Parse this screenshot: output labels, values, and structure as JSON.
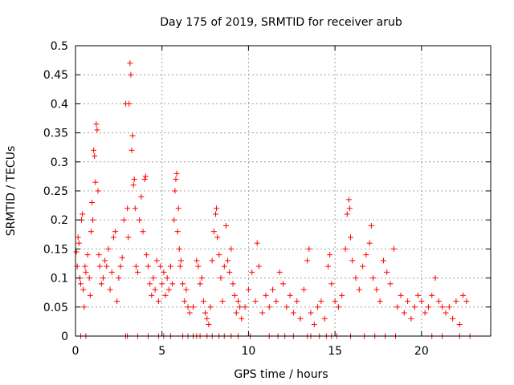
{
  "chart_data": {
    "type": "scatter",
    "title": "Day 175 of 2019, SRMTID for receiver arub",
    "xlabel": "GPS time / hours",
    "ylabel": "SRMTID / TECUs",
    "xlim": [
      0,
      24
    ],
    "ylim": [
      0,
      0.5
    ],
    "x_ticks": [
      0,
      5,
      10,
      15,
      20
    ],
    "y_ticks": [
      0,
      0.05,
      0.1,
      0.15,
      0.2,
      0.25,
      0.3,
      0.35,
      0.4,
      0.45,
      0.5
    ],
    "x_tick_labels": [
      "0",
      "5",
      "10",
      "15",
      "20"
    ],
    "y_tick_labels": [
      "0",
      "0.05",
      "0.1",
      "0.15",
      "0.2",
      "0.25",
      "0.3",
      "0.35",
      "0.4",
      "0.45",
      "0.5"
    ],
    "grid": true,
    "marker": "+",
    "series": [
      {
        "name": "SRMTID",
        "color": "#ff0000",
        "points": [
          [
            0.05,
            0.145
          ],
          [
            0.1,
            0.12
          ],
          [
            0.15,
            0.17
          ],
          [
            0.2,
            0.16
          ],
          [
            0.25,
            0.1
          ],
          [
            0.3,
            0.09
          ],
          [
            0.35,
            0.2
          ],
          [
            0.4,
            0.21
          ],
          [
            0.45,
            0.08
          ],
          [
            0.5,
            0.05
          ],
          [
            0.55,
            0.12
          ],
          [
            0.6,
            0.11
          ],
          [
            0.7,
            0.14
          ],
          [
            0.8,
            0.1
          ],
          [
            0.85,
            0.07
          ],
          [
            0.9,
            0.18
          ],
          [
            0.95,
            0.23
          ],
          [
            1.0,
            0.2
          ],
          [
            1.05,
            0.32
          ],
          [
            1.1,
            0.31
          ],
          [
            1.15,
            0.265
          ],
          [
            1.2,
            0.365
          ],
          [
            1.25,
            0.355
          ],
          [
            1.3,
            0.25
          ],
          [
            1.35,
            0.14
          ],
          [
            1.4,
            0.12
          ],
          [
            1.5,
            0.09
          ],
          [
            1.6,
            0.1
          ],
          [
            1.7,
            0.13
          ],
          [
            1.8,
            0.12
          ],
          [
            1.9,
            0.15
          ],
          [
            2.0,
            0.08
          ],
          [
            2.1,
            0.11
          ],
          [
            2.2,
            0.17
          ],
          [
            2.3,
            0.18
          ],
          [
            2.4,
            0.06
          ],
          [
            2.5,
            0.1
          ],
          [
            2.6,
            0.12
          ],
          [
            2.7,
            0.135
          ],
          [
            2.8,
            0.2
          ],
          [
            2.9,
            0.4
          ],
          [
            3.0,
            0.22
          ],
          [
            3.05,
            0.17
          ],
          [
            3.1,
            0.4
          ],
          [
            3.15,
            0.47
          ],
          [
            3.2,
            0.45
          ],
          [
            3.25,
            0.32
          ],
          [
            3.3,
            0.345
          ],
          [
            3.35,
            0.26
          ],
          [
            3.4,
            0.27
          ],
          [
            3.45,
            0.22
          ],
          [
            3.5,
            0.12
          ],
          [
            3.6,
            0.11
          ],
          [
            3.7,
            0.2
          ],
          [
            3.8,
            0.24
          ],
          [
            3.9,
            0.18
          ],
          [
            4.0,
            0.27
          ],
          [
            4.05,
            0.275
          ],
          [
            4.1,
            0.14
          ],
          [
            4.2,
            0.12
          ],
          [
            4.3,
            0.09
          ],
          [
            4.4,
            0.07
          ],
          [
            4.5,
            0.1
          ],
          [
            4.6,
            0.08
          ],
          [
            4.7,
            0.13
          ],
          [
            4.8,
            0.06
          ],
          [
            4.9,
            0.12
          ],
          [
            5.0,
            0.09
          ],
          [
            5.1,
            0.11
          ],
          [
            5.2,
            0.07
          ],
          [
            5.3,
            0.1
          ],
          [
            5.4,
            0.08
          ],
          [
            5.5,
            0.12
          ],
          [
            5.6,
            0.09
          ],
          [
            5.7,
            0.2
          ],
          [
            5.75,
            0.25
          ],
          [
            5.8,
            0.27
          ],
          [
            5.85,
            0.28
          ],
          [
            5.9,
            0.18
          ],
          [
            5.95,
            0.22
          ],
          [
            6.0,
            0.15
          ],
          [
            6.05,
            0.12
          ],
          [
            6.1,
            0.13
          ],
          [
            6.2,
            0.09
          ],
          [
            6.3,
            0.06
          ],
          [
            6.4,
            0.08
          ],
          [
            6.5,
            0.05
          ],
          [
            6.6,
            0.04
          ],
          [
            6.8,
            0.05
          ],
          [
            7.0,
            0.13
          ],
          [
            7.1,
            0.12
          ],
          [
            7.2,
            0.09
          ],
          [
            7.3,
            0.1
          ],
          [
            7.4,
            0.06
          ],
          [
            7.5,
            0.04
          ],
          [
            7.6,
            0.03
          ],
          [
            7.7,
            0.02
          ],
          [
            7.8,
            0.05
          ],
          [
            7.9,
            0.13
          ],
          [
            8.0,
            0.18
          ],
          [
            8.1,
            0.21
          ],
          [
            8.15,
            0.22
          ],
          [
            8.2,
            0.17
          ],
          [
            8.3,
            0.14
          ],
          [
            8.4,
            0.1
          ],
          [
            8.5,
            0.06
          ],
          [
            8.6,
            0.12
          ],
          [
            8.7,
            0.19
          ],
          [
            8.8,
            0.13
          ],
          [
            8.9,
            0.11
          ],
          [
            9.0,
            0.15
          ],
          [
            9.1,
            0.09
          ],
          [
            9.2,
            0.07
          ],
          [
            9.3,
            0.04
          ],
          [
            9.4,
            0.06
          ],
          [
            9.5,
            0.05
          ],
          [
            9.6,
            0.03
          ],
          [
            9.8,
            0.05
          ],
          [
            10.0,
            0.08
          ],
          [
            10.2,
            0.11
          ],
          [
            10.4,
            0.06
          ],
          [
            10.5,
            0.16
          ],
          [
            10.6,
            0.12
          ],
          [
            10.8,
            0.04
          ],
          [
            11.0,
            0.07
          ],
          [
            11.2,
            0.05
          ],
          [
            11.4,
            0.08
          ],
          [
            11.6,
            0.06
          ],
          [
            11.8,
            0.11
          ],
          [
            12.0,
            0.09
          ],
          [
            12.2,
            0.05
          ],
          [
            12.4,
            0.07
          ],
          [
            12.6,
            0.04
          ],
          [
            12.8,
            0.06
          ],
          [
            13.0,
            0.03
          ],
          [
            13.2,
            0.08
          ],
          [
            13.4,
            0.13
          ],
          [
            13.5,
            0.15
          ],
          [
            13.6,
            0.04
          ],
          [
            13.8,
            0.02
          ],
          [
            14.0,
            0.05
          ],
          [
            14.2,
            0.06
          ],
          [
            14.4,
            0.03
          ],
          [
            14.6,
            0.12
          ],
          [
            14.7,
            0.14
          ],
          [
            14.8,
            0.09
          ],
          [
            15.0,
            0.06
          ],
          [
            15.2,
            0.05
          ],
          [
            15.4,
            0.07
          ],
          [
            15.6,
            0.15
          ],
          [
            15.7,
            0.21
          ],
          [
            15.8,
            0.235
          ],
          [
            15.85,
            0.22
          ],
          [
            15.9,
            0.17
          ],
          [
            16.0,
            0.13
          ],
          [
            16.2,
            0.1
          ],
          [
            16.4,
            0.08
          ],
          [
            16.6,
            0.12
          ],
          [
            16.8,
            0.14
          ],
          [
            17.0,
            0.16
          ],
          [
            17.1,
            0.19
          ],
          [
            17.2,
            0.1
          ],
          [
            17.4,
            0.08
          ],
          [
            17.6,
            0.06
          ],
          [
            17.8,
            0.13
          ],
          [
            18.0,
            0.11
          ],
          [
            18.2,
            0.09
          ],
          [
            18.4,
            0.15
          ],
          [
            18.6,
            0.05
          ],
          [
            18.8,
            0.07
          ],
          [
            19.0,
            0.04
          ],
          [
            19.2,
            0.06
          ],
          [
            19.4,
            0.03
          ],
          [
            19.6,
            0.05
          ],
          [
            19.8,
            0.07
          ],
          [
            20.0,
            0.06
          ],
          [
            20.2,
            0.04
          ],
          [
            20.4,
            0.05
          ],
          [
            20.6,
            0.07
          ],
          [
            20.8,
            0.1
          ],
          [
            21.0,
            0.06
          ],
          [
            21.2,
            0.05
          ],
          [
            21.4,
            0.04
          ],
          [
            21.6,
            0.05
          ],
          [
            21.8,
            0.03
          ],
          [
            22.0,
            0.06
          ],
          [
            22.2,
            0.02
          ],
          [
            22.4,
            0.07
          ],
          [
            22.6,
            0.06
          ],
          [
            0.3,
            0.0
          ],
          [
            0.6,
            0.0
          ],
          [
            2.9,
            0.0
          ],
          [
            3.0,
            0.0
          ],
          [
            3.6,
            0.0
          ],
          [
            4.2,
            0.0
          ],
          [
            4.8,
            0.0
          ],
          [
            5.1,
            0.0
          ],
          [
            5.5,
            0.0
          ],
          [
            6.2,
            0.0
          ],
          [
            6.5,
            0.0
          ],
          [
            6.8,
            0.0
          ],
          [
            7.0,
            0.0
          ],
          [
            7.2,
            0.0
          ],
          [
            7.6,
            0.0
          ],
          [
            7.9,
            0.0
          ],
          [
            8.3,
            0.0
          ],
          [
            8.6,
            0.0
          ],
          [
            9.0,
            0.0
          ],
          [
            9.4,
            0.0
          ],
          [
            10.1,
            0.0
          ],
          [
            11.2,
            0.0
          ],
          [
            11.7,
            0.0
          ],
          [
            12.1,
            0.0
          ],
          [
            12.6,
            0.0
          ],
          [
            13.4,
            0.0
          ],
          [
            13.6,
            0.0
          ],
          [
            14.1,
            0.0
          ],
          [
            14.5,
            0.0
          ],
          [
            14.8,
            0.0
          ],
          [
            15.1,
            0.0
          ],
          [
            15.9,
            0.0
          ],
          [
            16.7,
            0.0
          ],
          [
            17.3,
            0.0
          ],
          [
            17.9,
            0.0
          ],
          [
            18.5,
            0.0
          ],
          [
            20.6,
            0.0
          ],
          [
            21.2,
            0.0
          ],
          [
            22.2,
            0.0
          ],
          [
            22.8,
            0.0
          ]
        ]
      }
    ]
  }
}
